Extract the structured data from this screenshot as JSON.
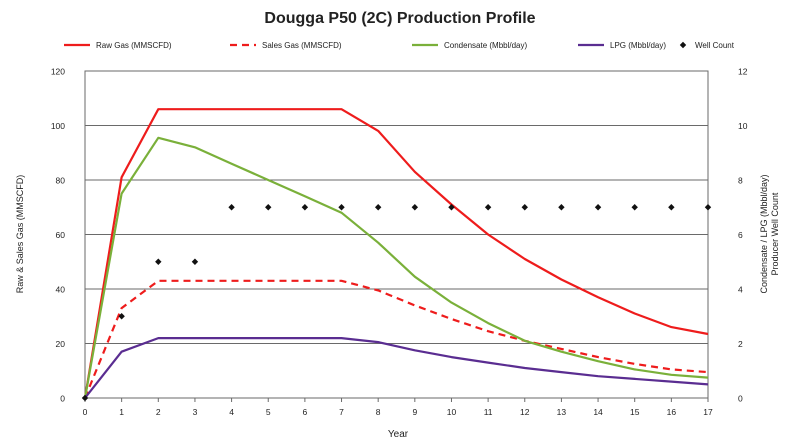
{
  "chart_data": {
    "type": "line",
    "title": "Dougga P50 (2C) Production Profile",
    "xlabel": "Year",
    "ylabel_left": "Raw & Sales Gas (MMSCFD)",
    "ylabel_right": "Condensate / LPG (Mbbl/day)\nProducer Well Count",
    "x": [
      0,
      1,
      2,
      3,
      4,
      5,
      6,
      7,
      8,
      9,
      10,
      11,
      12,
      13,
      14,
      15,
      16,
      17
    ],
    "xticks": [
      "0",
      "1",
      "2",
      "3",
      "4",
      "5",
      "6",
      "7",
      "8",
      "9",
      "10",
      "11",
      "12",
      "13",
      "14",
      "15",
      "16",
      "17"
    ],
    "ylim_left": [
      0,
      120
    ],
    "yticks_left": [
      "0",
      "20",
      "40",
      "60",
      "80",
      "100",
      "120"
    ],
    "ylim_right": [
      0,
      12
    ],
    "yticks_right": [
      "0",
      "2",
      "4",
      "6",
      "8",
      "10",
      "12"
    ],
    "grid": true,
    "legend_position": "top",
    "series": [
      {
        "name": "Raw Gas (MMSCFD)",
        "axis": "left",
        "style": "solid",
        "color": "#ee1c1c",
        "values": [
          0,
          81,
          106,
          106,
          106,
          106,
          106,
          106,
          98,
          83,
          71,
          60,
          51,
          43.5,
          37,
          31,
          26,
          23.5
        ]
      },
      {
        "name": "Sales Gas (MMSCFD)",
        "axis": "left",
        "style": "dashed",
        "color": "#ee1c1c",
        "values": [
          0,
          33,
          43,
          43,
          43,
          43,
          43,
          43,
          39.5,
          34,
          29,
          24.5,
          21,
          18,
          15,
          12.5,
          10.5,
          9.5
        ]
      },
      {
        "name": "Condensate (Mbbl/day)",
        "axis": "right",
        "style": "solid",
        "color": "#7ab03a",
        "values": [
          0,
          7.5,
          9.55,
          9.2,
          8.6,
          8,
          7.4,
          6.8,
          5.7,
          4.45,
          3.5,
          2.75,
          2.1,
          1.7,
          1.35,
          1.05,
          0.85,
          0.75
        ]
      },
      {
        "name": "LPG (Mbbl/day)",
        "axis": "right",
        "style": "solid",
        "color": "#5a2d91",
        "values": [
          0,
          1.7,
          2.2,
          2.2,
          2.2,
          2.2,
          2.2,
          2.2,
          2.05,
          1.75,
          1.5,
          1.3,
          1.1,
          0.95,
          0.8,
          0.7,
          0.6,
          0.5
        ]
      },
      {
        "name": "Well Count",
        "axis": "right",
        "style": "markers",
        "color": "#111111",
        "values": [
          0,
          3,
          5,
          5,
          7,
          7,
          7,
          7,
          7,
          7,
          7,
          7,
          7,
          7,
          7,
          7,
          7,
          7
        ]
      }
    ]
  }
}
